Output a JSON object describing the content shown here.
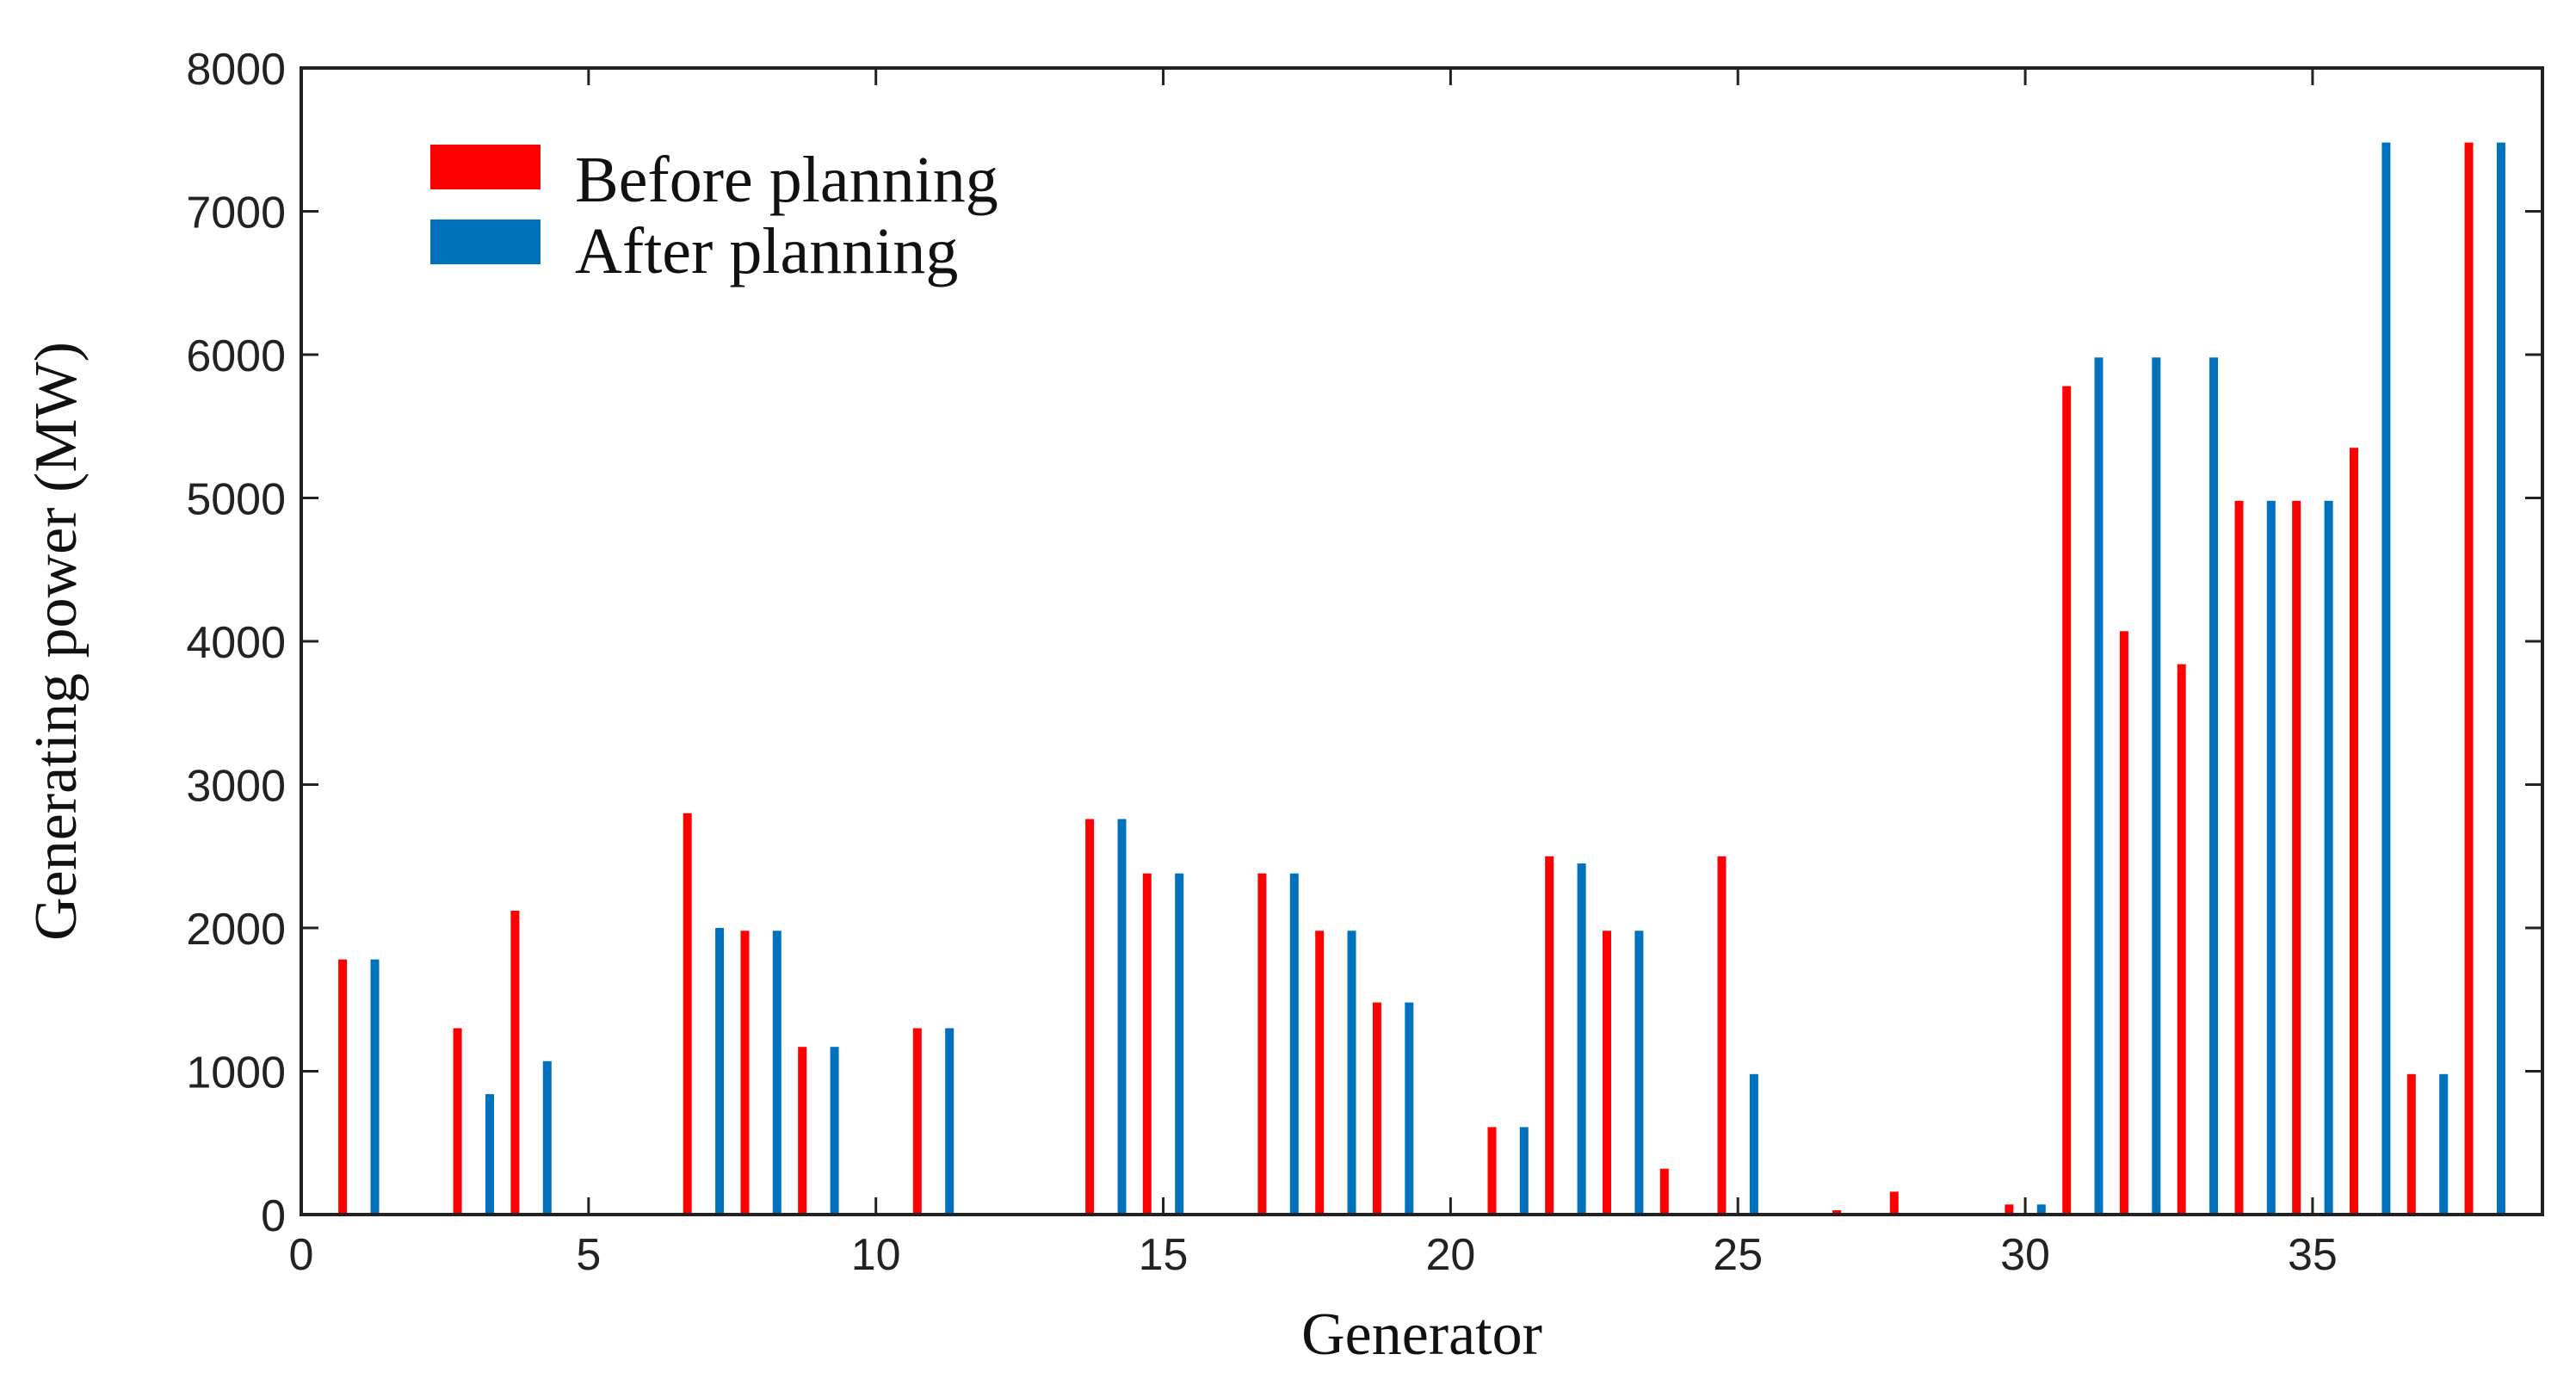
{
  "chart_data": {
    "type": "bar",
    "title": "",
    "xlabel": "Generator",
    "ylabel": "Generating power (MW)",
    "xlim": [
      0,
      39
    ],
    "ylim": [
      0,
      8000
    ],
    "xticks": [
      0,
      5,
      10,
      15,
      20,
      25,
      30,
      35
    ],
    "yticks": [
      0,
      1000,
      2000,
      3000,
      4000,
      5000,
      6000,
      7000,
      8000
    ],
    "grid": false,
    "legend_position": "top-left",
    "x": [
      1,
      2,
      3,
      4,
      5,
      6,
      7,
      8,
      9,
      10,
      11,
      12,
      13,
      14,
      15,
      16,
      17,
      18,
      19,
      20,
      21,
      22,
      23,
      24,
      25,
      26,
      27,
      28,
      29,
      30,
      31,
      32,
      33,
      34,
      35,
      36,
      37,
      38
    ],
    "series": [
      {
        "name": "Before planning",
        "color": "#ff0000",
        "values": [
          1780,
          0,
          1300,
          2120,
          0,
          0,
          2800,
          1980,
          1170,
          0,
          1300,
          0,
          0,
          2760,
          2380,
          0,
          2380,
          1980,
          1480,
          0,
          610,
          2500,
          1980,
          320,
          2500,
          0,
          30,
          160,
          0,
          70,
          5780,
          4070,
          3840,
          4980,
          4980,
          5350,
          980,
          7480
        ]
      },
      {
        "name": "After planning",
        "color": "#0072bd",
        "values": [
          1780,
          0,
          840,
          1070,
          0,
          0,
          2000,
          1980,
          1170,
          0,
          1300,
          0,
          0,
          2760,
          2380,
          0,
          2380,
          1980,
          1480,
          0,
          610,
          2450,
          1980,
          0,
          980,
          0,
          0,
          0,
          0,
          70,
          5980,
          5980,
          5980,
          4980,
          4980,
          7480,
          980,
          7480
        ]
      }
    ]
  }
}
